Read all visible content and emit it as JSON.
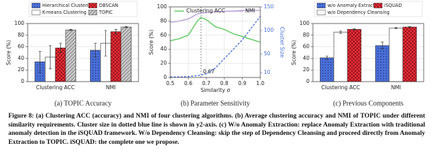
{
  "chart_data": [
    {
      "type": "bar",
      "subcaption": "(a) TOPIC Accuracy",
      "ylabel": "Score (%)",
      "categories": [
        "Clustering ACC",
        "NMI"
      ],
      "series": [
        {
          "name": "Hierarchical Clustering",
          "color": "#4a6fd8",
          "hatch": "dots",
          "values": [
            34,
            54
          ],
          "errors": [
            18,
            12
          ]
        },
        {
          "name": "K-means Clustering",
          "color": "#ffffff",
          "hatch": "none",
          "values": [
            42,
            66
          ],
          "errors": [
            20,
            22
          ]
        },
        {
          "name": "DBSCAN",
          "color": "#e8303a",
          "hatch": "cross",
          "values": [
            58,
            86
          ],
          "errors": [
            8,
            4
          ]
        },
        {
          "name": "TOPIC",
          "color": "#c8c8c8",
          "hatch": "diag",
          "values": [
            89,
            94
          ],
          "errors": [
            1,
            1
          ]
        }
      ],
      "ylim": [
        0,
        100
      ],
      "yticks": [
        0,
        20,
        40,
        60,
        80,
        100
      ],
      "grid": true
    },
    {
      "type": "line",
      "subcaption": "(b) Parameter Sensitivity",
      "ylabel": "Score (%)",
      "xlabel": "Similarity σ",
      "y2label": "Cluster Size",
      "x": [
        0.5,
        0.55,
        0.6,
        0.65,
        0.67,
        0.7,
        0.75,
        0.8,
        0.85,
        0.9,
        0.95,
        1.0
      ],
      "series": [
        {
          "name": "Clustering ACC",
          "color": "#5cc95c",
          "values": [
            52,
            55,
            60,
            80,
            85,
            82,
            72,
            68,
            62,
            58,
            54,
            50
          ]
        },
        {
          "name": "NMI",
          "color": "#b8a2d9",
          "values": [
            78,
            80,
            83,
            90,
            91,
            92,
            93,
            94,
            94,
            95,
            95,
            95
          ]
        },
        {
          "color": "#4a6fd8",
          "linestyle": "dashed",
          "axis": "y2",
          "values": [
            1,
            1,
            2,
            4,
            5,
            8,
            20,
            40,
            60,
            80,
            105,
            130
          ]
        }
      ],
      "annotations": [
        {
          "value": 0.67,
          "label": "0.67"
        }
      ],
      "xlim": [
        0.5,
        1.0
      ],
      "xticks": [
        0.5,
        0.6,
        0.7,
        0.8,
        0.9,
        {
          "value": 1.0,
          "label": "1.0"
        }
      ],
      "ylim": [
        0,
        100
      ],
      "yticks": [
        0,
        20,
        40,
        60,
        80,
        100
      ],
      "y2lim": [
        0,
        150
      ],
      "y2ticks": [
        10,
        50,
        100,
        150
      ],
      "grid": true
    },
    {
      "type": "bar",
      "subcaption": "(c) Previous Components",
      "ylabel": "Score (%)",
      "categories": [
        "Clustering ACC",
        "NMI"
      ],
      "series": [
        {
          "name": "w/o Anomaly Extraction",
          "color": "#4a6fd8",
          "hatch": "dots",
          "values": [
            41,
            62
          ],
          "errors": [
            3,
            6
          ]
        },
        {
          "name": "w/o Dependency Cleansing",
          "color": "#ffffff",
          "hatch": "none",
          "values": [
            85,
            92
          ],
          "errors": [
            2,
            1
          ]
        },
        {
          "name": "iSQUAD",
          "color": "#e8303a",
          "hatch": "cross",
          "values": [
            90,
            94
          ],
          "errors": [
            1,
            1
          ]
        }
      ],
      "ylim": [
        0,
        100
      ],
      "yticks": [
        0,
        20,
        40,
        60,
        80,
        100
      ],
      "grid": true
    }
  ],
  "caption": {
    "label": "Figure 8:",
    "text": "(a) Clustering ACC (accuracy) and NMI of four clustering algorithms. (b) Average clustering accuracy and NMI of TOPIC under different similarity requirements. Cluster size in dotted blue line is shown in y2-axis. (c) W/o Anomaly Extraction: replace Anomaly Extraction with traditional anomaly detection in the iSQUAD framework. W/o Dependency Cleansing: skip the step of Dependency Cleansing and proceed directly from Anomaly Extraction to TOPIC. iSQUAD: the complete one we propose."
  }
}
